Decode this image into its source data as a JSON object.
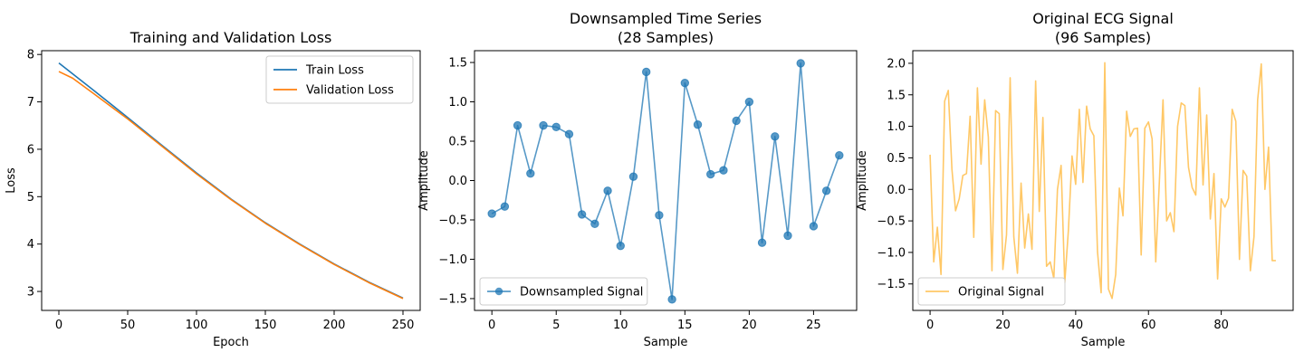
{
  "chart_data": [
    {
      "type": "line",
      "title": "Training and Validation Loss",
      "xlabel": "Epoch",
      "ylabel": "Loss",
      "xlim": [
        -12.5,
        262.5
      ],
      "ylim": [
        2.6,
        8.08
      ],
      "xticks": [
        0,
        50,
        100,
        150,
        200,
        250
      ],
      "yticks": [
        3,
        4,
        5,
        6,
        7,
        8
      ],
      "grid": false,
      "legend_position": "upper right",
      "series": [
        {
          "name": "Train Loss",
          "color": "#1f77b4",
          "x": [
            0,
            25,
            50,
            75,
            100,
            125,
            150,
            175,
            200,
            225,
            250
          ],
          "y": [
            7.82,
            7.25,
            6.67,
            6.08,
            5.5,
            4.95,
            4.45,
            4.0,
            3.58,
            3.2,
            2.86
          ]
        },
        {
          "name": "Validation Loss",
          "color": "#ff7f0e",
          "x": [
            0,
            10,
            25,
            50,
            75,
            100,
            125,
            150,
            175,
            200,
            225,
            250
          ],
          "y": [
            7.64,
            7.5,
            7.18,
            6.64,
            6.06,
            5.48,
            4.94,
            4.44,
            3.99,
            3.57,
            3.19,
            2.85
          ]
        }
      ]
    },
    {
      "type": "line",
      "title": "Downsampled Time Series\n(28 Samples)",
      "title_lines": [
        "Downsampled Time Series",
        "(28 Samples)"
      ],
      "xlabel": "Sample",
      "ylabel": "Amplitude",
      "xlim": [
        -1.35,
        28.35
      ],
      "ylim": [
        -1.65,
        1.65
      ],
      "xticks": [
        0,
        5,
        10,
        15,
        20,
        25
      ],
      "yticks": [
        -1.5,
        -1.0,
        -0.5,
        0.0,
        0.5,
        1.0,
        1.5
      ],
      "ytick_labels": [
        "−1.5",
        "−1.0",
        "−0.5",
        "0.0",
        "0.5",
        "1.0",
        "1.5"
      ],
      "grid": false,
      "legend_position": "lower left",
      "series": [
        {
          "name": "Downsampled Signal",
          "color": "#1f77b4",
          "marker": "o",
          "x": [
            0,
            1,
            2,
            3,
            4,
            5,
            6,
            7,
            8,
            9,
            10,
            11,
            12,
            13,
            14,
            15,
            16,
            17,
            18,
            19,
            20,
            21,
            22,
            23,
            24,
            25,
            26,
            27
          ],
          "y": [
            -0.42,
            -0.33,
            0.7,
            0.09,
            0.7,
            0.68,
            0.59,
            -0.43,
            -0.55,
            -0.13,
            -0.83,
            0.05,
            1.38,
            -0.44,
            -1.51,
            1.24,
            0.71,
            0.08,
            0.13,
            0.76,
            1.0,
            -0.79,
            0.56,
            -0.7,
            1.49,
            -0.58,
            -0.13,
            0.32
          ]
        }
      ]
    },
    {
      "type": "line",
      "title": "Original ECG Signal\n(96 Samples)",
      "title_lines": [
        "Original ECG Signal",
        "(96 Samples)"
      ],
      "xlabel": "Sample",
      "ylabel": "Amplitude",
      "xlim": [
        -4.75,
        99.75
      ],
      "ylim": [
        -1.92,
        2.2
      ],
      "xticks": [
        0,
        20,
        40,
        60,
        80
      ],
      "yticks": [
        -1.5,
        -1.0,
        -0.5,
        0.0,
        0.5,
        1.0,
        1.5,
        2.0
      ],
      "ytick_labels": [
        "−1.5",
        "−1.0",
        "−0.5",
        "0.0",
        "0.5",
        "1.0",
        "1.5",
        "2.0"
      ],
      "grid": false,
      "legend_position": "lower left",
      "series": [
        {
          "name": "Original Signal",
          "color": "#ffb534",
          "x": [
            0,
            1,
            2,
            3,
            4,
            5,
            6,
            7,
            8,
            9,
            10,
            11,
            12,
            13,
            14,
            15,
            16,
            17,
            18,
            19,
            20,
            21,
            22,
            23,
            24,
            25,
            26,
            27,
            28,
            29,
            30,
            31,
            32,
            33,
            34,
            35,
            36,
            37,
            38,
            39,
            40,
            41,
            42,
            43,
            44,
            45,
            46,
            47,
            48,
            49,
            50,
            51,
            52,
            53,
            54,
            55,
            56,
            57,
            58,
            59,
            60,
            61,
            62,
            63,
            64,
            65,
            66,
            67,
            68,
            69,
            70,
            71,
            72,
            73,
            74,
            75,
            76,
            77,
            78,
            79,
            80,
            81,
            82,
            83,
            84,
            85,
            86,
            87,
            88,
            89,
            90,
            91,
            92,
            93,
            94,
            95
          ],
          "y": [
            0.55,
            -1.15,
            -0.6,
            -1.35,
            1.4,
            1.57,
            0.32,
            -0.34,
            -0.15,
            0.22,
            0.25,
            1.16,
            -0.76,
            1.61,
            0.4,
            1.42,
            0.83,
            -1.29,
            1.25,
            1.2,
            -1.27,
            -0.72,
            1.77,
            -0.75,
            -1.33,
            0.1,
            -0.93,
            -0.39,
            -0.95,
            1.72,
            -0.35,
            1.14,
            -1.22,
            -1.15,
            -1.41,
            0.0,
            0.38,
            -1.48,
            -0.65,
            0.53,
            0.08,
            1.27,
            0.11,
            1.32,
            0.96,
            0.85,
            -0.99,
            -1.64,
            2.01,
            -1.58,
            -1.73,
            -1.35,
            0.02,
            -0.42,
            1.24,
            0.84,
            0.96,
            0.97,
            -1.04,
            0.97,
            1.07,
            0.8,
            -1.15,
            0.13,
            1.42,
            -0.5,
            -0.37,
            -0.67,
            1.0,
            1.37,
            1.33,
            0.35,
            0.03,
            -0.09,
            1.61,
            0.07,
            1.18,
            -0.47,
            0.25,
            -1.42,
            -0.15,
            -0.28,
            -0.14,
            1.27,
            1.08,
            -1.11,
            0.3,
            0.21,
            -1.29,
            -0.75,
            1.42,
            1.99,
            0.0,
            0.67,
            -1.13,
            -1.13
          ]
        }
      ]
    }
  ]
}
